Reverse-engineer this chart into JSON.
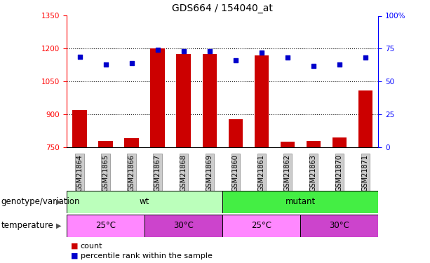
{
  "title": "GDS664 / 154040_at",
  "samples": [
    "GSM21864",
    "GSM21865",
    "GSM21866",
    "GSM21867",
    "GSM21868",
    "GSM21869",
    "GSM21860",
    "GSM21861",
    "GSM21862",
    "GSM21863",
    "GSM21870",
    "GSM21871"
  ],
  "counts": [
    920,
    780,
    790,
    1200,
    1175,
    1175,
    878,
    1170,
    775,
    778,
    795,
    1010
  ],
  "percentile_ranks": [
    69,
    63,
    64,
    74,
    73,
    73,
    66,
    72,
    68,
    62,
    63,
    68
  ],
  "ylim_left": [
    750,
    1350
  ],
  "ylim_right": [
    0,
    100
  ],
  "yticks_left": [
    750,
    900,
    1050,
    1200,
    1350
  ],
  "yticks_right": [
    0,
    25,
    50,
    75,
    100
  ],
  "bar_color": "#cc0000",
  "dot_color": "#0000cc",
  "grid_color": "#000000",
  "genotype_groups": [
    {
      "label": "wt",
      "start": 0,
      "end": 6,
      "color": "#bbffbb"
    },
    {
      "label": "mutant",
      "start": 6,
      "end": 12,
      "color": "#44ee44"
    }
  ],
  "temperature_groups": [
    {
      "label": "25°C",
      "start": 0,
      "end": 3,
      "color": "#ff88ff"
    },
    {
      "label": "30°C",
      "start": 3,
      "end": 6,
      "color": "#cc44cc"
    },
    {
      "label": "25°C",
      "start": 6,
      "end": 9,
      "color": "#ff88ff"
    },
    {
      "label": "30°C",
      "start": 9,
      "end": 12,
      "color": "#cc44cc"
    }
  ],
  "legend_items": [
    {
      "label": "count",
      "color": "#cc0000"
    },
    {
      "label": "percentile rank within the sample",
      "color": "#0000cc"
    }
  ],
  "row_labels": [
    "genotype/variation",
    "temperature"
  ],
  "background_color": "#ffffff",
  "title_fontsize": 10,
  "tick_fontsize": 7.5,
  "label_fontsize": 8.5,
  "anno_fontsize": 8.5
}
